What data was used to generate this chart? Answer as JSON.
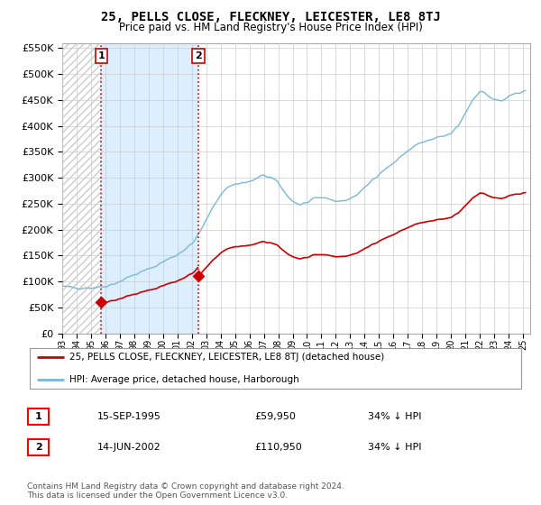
{
  "title": "25, PELLS CLOSE, FLECKNEY, LEICESTER, LE8 8TJ",
  "subtitle": "Price paid vs. HM Land Registry's House Price Index (HPI)",
  "ylim": [
    0,
    560000
  ],
  "yticks": [
    0,
    50000,
    100000,
    150000,
    200000,
    250000,
    300000,
    350000,
    400000,
    450000,
    500000,
    550000
  ],
  "ytick_labels": [
    "£0",
    "£50K",
    "£100K",
    "£150K",
    "£200K",
    "£250K",
    "£300K",
    "£350K",
    "£400K",
    "£450K",
    "£500K",
    "£550K"
  ],
  "hpi_color": "#7ab8d9",
  "price_color": "#cc0000",
  "vline_color": "#cc0000",
  "shaded_color": "#ddeeff",
  "legend_label_price": "25, PELLS CLOSE, FLECKNEY, LEICESTER, LE8 8TJ (detached house)",
  "legend_label_hpi": "HPI: Average price, detached house, Harborough",
  "transaction1_label": "1",
  "transaction1_date": "15-SEP-1995",
  "transaction1_price": "£59,950",
  "transaction1_hpi": "34% ↓ HPI",
  "transaction1_year": 1995.71,
  "transaction1_value": 59950,
  "transaction2_label": "2",
  "transaction2_date": "14-JUN-2002",
  "transaction2_price": "£110,950",
  "transaction2_hpi": "34% ↓ HPI",
  "transaction2_year": 2002.45,
  "transaction2_value": 110950,
  "copyright_text": "Contains HM Land Registry data © Crown copyright and database right 2024.\nThis data is licensed under the Open Government Licence v3.0.",
  "background_color": "#ffffff",
  "grid_color": "#cccccc",
  "xlim_start": 1993.0,
  "xlim_end": 2025.5,
  "hpi_anchors_t": [
    1993.0,
    1993.5,
    1994.0,
    1994.5,
    1995.0,
    1995.5,
    1996.0,
    1996.5,
    1997.0,
    1997.5,
    1998.0,
    1998.5,
    1999.0,
    1999.5,
    2000.0,
    2000.5,
    2001.0,
    2001.5,
    2002.0,
    2002.5,
    2003.0,
    2003.5,
    2004.0,
    2004.5,
    2005.0,
    2005.5,
    2006.0,
    2006.5,
    2007.0,
    2007.5,
    2008.0,
    2008.5,
    2009.0,
    2009.5,
    2010.0,
    2010.5,
    2011.0,
    2011.5,
    2012.0,
    2012.5,
    2013.0,
    2013.5,
    2014.0,
    2014.5,
    2015.0,
    2015.5,
    2016.0,
    2016.5,
    2017.0,
    2017.5,
    2018.0,
    2018.5,
    2019.0,
    2019.5,
    2020.0,
    2020.5,
    2021.0,
    2021.5,
    2022.0,
    2022.5,
    2023.0,
    2023.5,
    2024.0,
    2024.5,
    2025.0
  ],
  "hpi_anchors_v": [
    90000,
    89000,
    88000,
    88000,
    88000,
    89000,
    91000,
    95000,
    100000,
    107000,
    113000,
    118000,
    124000,
    130000,
    138000,
    145000,
    152000,
    162000,
    172000,
    192000,
    218000,
    245000,
    268000,
    282000,
    288000,
    290000,
    292000,
    298000,
    305000,
    300000,
    290000,
    270000,
    255000,
    248000,
    252000,
    258000,
    262000,
    260000,
    255000,
    255000,
    260000,
    268000,
    280000,
    295000,
    308000,
    318000,
    328000,
    340000,
    352000,
    362000,
    368000,
    372000,
    376000,
    380000,
    385000,
    400000,
    425000,
    450000,
    468000,
    460000,
    450000,
    448000,
    455000,
    462000,
    468000
  ]
}
